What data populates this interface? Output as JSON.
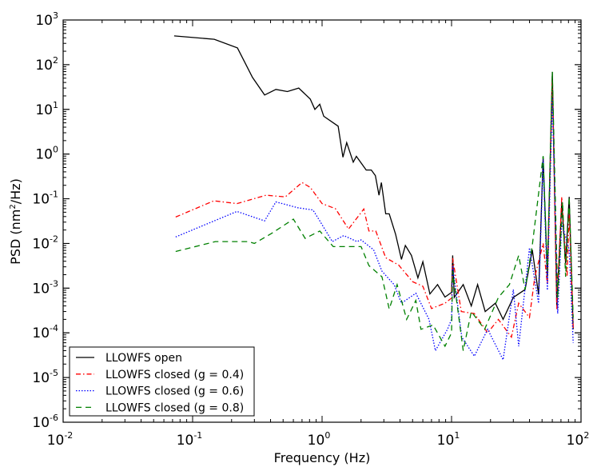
{
  "chart_data": {
    "type": "line",
    "title": "",
    "xlabel": "Frequency (Hz)",
    "ylabel_main": "PSD (nm",
    "ylabel_sup": "2",
    "ylabel_tail": "/Hz)",
    "xscale": "log",
    "yscale": "log",
    "xlim": [
      0.01,
      100
    ],
    "ylim": [
      1e-06,
      1000
    ],
    "grid": false,
    "legend_position": "bottom-left",
    "xticks": [
      {
        "value": 0.01,
        "base": "10",
        "exp": "-2"
      },
      {
        "value": 0.1,
        "base": "10",
        "exp": "-1"
      },
      {
        "value": 1,
        "base": "10",
        "exp": "0"
      },
      {
        "value": 10,
        "base": "10",
        "exp": "1"
      },
      {
        "value": 100,
        "base": "10",
        "exp": "2"
      }
    ],
    "yticks": [
      {
        "value": 1e-06,
        "base": "10",
        "exp": "-6"
      },
      {
        "value": 1e-05,
        "base": "10",
        "exp": "-5"
      },
      {
        "value": 0.0001,
        "base": "10",
        "exp": "-4"
      },
      {
        "value": 0.001,
        "base": "10",
        "exp": "-3"
      },
      {
        "value": 0.01,
        "base": "10",
        "exp": "-2"
      },
      {
        "value": 0.1,
        "base": "10",
        "exp": "-1"
      },
      {
        "value": 1,
        "base": "10",
        "exp": "0"
      },
      {
        "value": 10,
        "base": "10",
        "exp": "1"
      },
      {
        "value": 100,
        "base": "10",
        "exp": "2"
      },
      {
        "value": 1000,
        "base": "10",
        "exp": "3"
      }
    ],
    "series": [
      {
        "name": "LLOWFS open",
        "color": "#000000",
        "style": "solid",
        "x": [
          0.072,
          0.147,
          0.222,
          0.29,
          0.36,
          0.44,
          0.54,
          0.66,
          0.81,
          0.88,
          0.96,
          1.03,
          1.33,
          1.45,
          1.55,
          1.74,
          1.84,
          2.19,
          2.4,
          2.58,
          2.75,
          2.87,
          3.1,
          3.3,
          3.7,
          4.1,
          4.4,
          4.9,
          5.5,
          6.0,
          6.8,
          7.8,
          8.9,
          10.0,
          10.2,
          10.5,
          12.3,
          14.2,
          15.9,
          18.2,
          21.8,
          25,
          30,
          37,
          42,
          47,
          51,
          55,
          60,
          65,
          71,
          76,
          81,
          87
        ],
        "y": [
          440,
          370,
          237,
          52,
          21,
          28,
          25,
          30,
          17,
          10,
          13,
          7,
          4.2,
          0.85,
          1.8,
          0.66,
          0.89,
          0.44,
          0.44,
          0.33,
          0.12,
          0.23,
          0.046,
          0.046,
          0.016,
          0.0044,
          0.009,
          0.0054,
          0.0017,
          0.0039,
          0.00074,
          0.0012,
          0.00063,
          0.0008,
          0.0054,
          0.00062,
          0.0012,
          0.0004,
          0.0012,
          0.0003,
          0.00046,
          0.0002,
          0.00062,
          0.00093,
          0.0072,
          0.00072,
          0.85,
          0.0018,
          69,
          0.0004,
          0.085,
          0.0036,
          0.11,
          0.00012
        ]
      },
      {
        "name": "LLOWFS closed (g = 0.4)",
        "color": "#ff0000",
        "style": "dashdot",
        "x": [
          0.074,
          0.146,
          0.22,
          0.37,
          0.52,
          0.7,
          0.81,
          1.0,
          1.27,
          1.6,
          2.1,
          2.3,
          2.6,
          3.1,
          3.9,
          5.0,
          6.0,
          7.0,
          8.9,
          10.0,
          10.2,
          11.9,
          15,
          19,
          23,
          29,
          33,
          40,
          44,
          51,
          55,
          60,
          65,
          71,
          78,
          81,
          87
        ],
        "y": [
          0.039,
          0.09,
          0.078,
          0.12,
          0.11,
          0.23,
          0.18,
          0.078,
          0.06,
          0.021,
          0.059,
          0.019,
          0.019,
          0.0048,
          0.0033,
          0.0014,
          0.0011,
          0.00035,
          0.00046,
          0.0006,
          0.0047,
          0.0003,
          0.00027,
          0.0001,
          0.0002,
          8e-05,
          0.00046,
          0.00022,
          0.0018,
          0.01,
          0.0012,
          46,
          0.00034,
          0.11,
          0.0018,
          0.048,
          0.00012
        ]
      },
      {
        "name": "LLOWFS closed (g = 0.6)",
        "color": "#0000ff",
        "style": "dotted",
        "x": [
          0.074,
          0.22,
          0.36,
          0.44,
          0.65,
          0.85,
          0.96,
          1.2,
          1.47,
          1.86,
          2.0,
          2.5,
          2.9,
          3.6,
          4.1,
          5.3,
          6.7,
          7.5,
          9.3,
          10.0,
          10.2,
          12,
          15,
          19,
          25,
          30,
          33,
          40,
          47,
          51,
          55,
          60,
          66,
          71,
          81,
          87
        ],
        "y": [
          0.014,
          0.052,
          0.032,
          0.085,
          0.063,
          0.056,
          0.032,
          0.011,
          0.015,
          0.011,
          0.012,
          0.0072,
          0.0024,
          0.0012,
          0.00046,
          0.00077,
          0.0002,
          4e-05,
          0.00012,
          0.0002,
          0.0032,
          8e-05,
          3e-05,
          0.00012,
          2.5e-05,
          0.00093,
          5e-05,
          0.008,
          0.00046,
          0.75,
          0.0009,
          20,
          0.00027,
          0.028,
          0.0072,
          6e-05
        ]
      },
      {
        "name": "LLOWFS closed (g = 0.8)",
        "color": "#008000",
        "style": "dashed",
        "x": [
          0.074,
          0.15,
          0.27,
          0.3,
          0.41,
          0.6,
          0.74,
          0.96,
          1.22,
          2.0,
          2.3,
          2.9,
          3.1,
          3.3,
          3.8,
          4.5,
          5.3,
          5.8,
          7.2,
          8.9,
          10.0,
          10.2,
          12.3,
          14.2,
          18,
          23,
          28,
          33,
          37,
          42,
          51,
          55,
          60,
          66,
          72,
          76,
          81,
          87
        ],
        "y": [
          0.0066,
          0.011,
          0.011,
          0.01,
          0.017,
          0.035,
          0.013,
          0.019,
          0.0085,
          0.0085,
          0.0032,
          0.0018,
          0.00077,
          0.00034,
          0.0012,
          0.0002,
          0.00053,
          0.00012,
          0.00015,
          5e-05,
          0.0001,
          0.0024,
          4e-05,
          0.0003,
          0.00012,
          0.00062,
          0.0012,
          0.0054,
          0.00093,
          0.009,
          0.9,
          0.0024,
          69,
          0.0006,
          0.085,
          0.0018,
          0.11,
          0.00022
        ]
      }
    ]
  }
}
